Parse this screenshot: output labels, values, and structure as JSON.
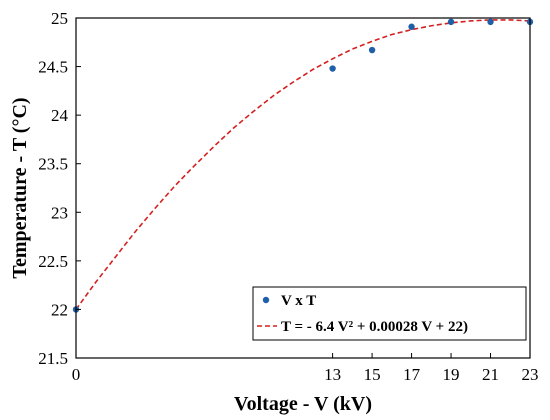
{
  "chart_data": {
    "type": "scatter",
    "title": "",
    "xlabel": "Voltage - V (kV)",
    "ylabel": "Temperature - T (°C)",
    "xlim": [
      0,
      23
    ],
    "ylim": [
      21.5,
      25
    ],
    "x_ticks": [
      0,
      13,
      15,
      17,
      19,
      21,
      23
    ],
    "y_ticks": [
      21.5,
      22,
      22.5,
      23,
      23.5,
      24,
      24.5,
      25
    ],
    "y_tick_labels": [
      "21.5",
      "22",
      "22.5",
      "23",
      "23.5",
      "24",
      "24.5",
      "25"
    ],
    "grid": false,
    "legend_position": "bottom-right",
    "series": [
      {
        "name": "V x T",
        "kind": "points",
        "color": "#1f5fa8",
        "x": [
          0,
          13,
          15,
          17,
          19,
          21,
          23
        ],
        "y": [
          22.0,
          24.48,
          24.67,
          24.91,
          24.96,
          24.96,
          24.96
        ]
      },
      {
        "name": "T = - 6.4 V² + 0.00028 V + 22)",
        "kind": "fit-curve",
        "style": "dashed",
        "color": "#d42020",
        "x": [
          0,
          1,
          2,
          3,
          4,
          5,
          6,
          7,
          8,
          9,
          10,
          11,
          12,
          13,
          14,
          15,
          16,
          17,
          18,
          19,
          20,
          21,
          22,
          23
        ],
        "y": [
          22.0,
          22.28,
          22.54,
          22.8,
          23.04,
          23.27,
          23.48,
          23.68,
          23.87,
          24.04,
          24.2,
          24.34,
          24.47,
          24.58,
          24.68,
          24.76,
          24.83,
          24.88,
          24.92,
          24.95,
          24.97,
          24.98,
          24.98,
          24.97
        ]
      }
    ]
  }
}
